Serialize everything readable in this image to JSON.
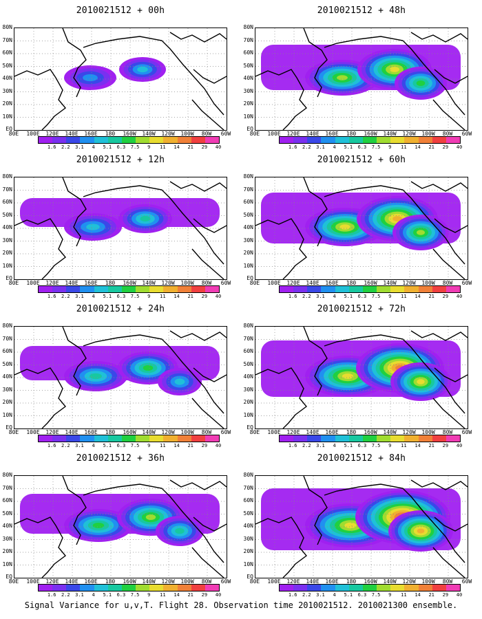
{
  "footer": "Signal Variance for u,v,T. Flight 28. Observation time 2010021512. 2010021300 ensemble.",
  "colorbar": {
    "labels": [
      "1.6",
      "2.2",
      "3.1",
      "4",
      "5.1",
      "6.3",
      "7.5",
      "9",
      "11",
      "14",
      "21",
      "29",
      "40"
    ],
    "colors": [
      "#a020f0",
      "#7a30f0",
      "#3a48e8",
      "#2090f0",
      "#20c0d8",
      "#18c8a0",
      "#20d040",
      "#a0dc30",
      "#e8dc30",
      "#f0b030",
      "#f08038",
      "#f04040",
      "#f03cb4"
    ]
  },
  "axes": {
    "y_labels": [
      "80N",
      "70N",
      "60N",
      "50N",
      "40N",
      "30N",
      "20N",
      "10N",
      "EQ"
    ],
    "x_labels": [
      "80E",
      "100E",
      "120E",
      "140E",
      "160E",
      "180",
      "160W",
      "140W",
      "120W",
      "100W",
      "80W",
      "60W"
    ]
  },
  "chart_data": [
    {
      "type": "heatmap",
      "title": "2010021512 + 00h",
      "forecast_hour": 0,
      "level": 0
    },
    {
      "type": "heatmap",
      "title": "2010021512 + 48h",
      "forecast_hour": 48,
      "level": 4
    },
    {
      "type": "heatmap",
      "title": "2010021512 + 12h",
      "forecast_hour": 12,
      "level": 1
    },
    {
      "type": "heatmap",
      "title": "2010021512 + 60h",
      "forecast_hour": 60,
      "level": 5
    },
    {
      "type": "heatmap",
      "title": "2010021512 + 24h",
      "forecast_hour": 24,
      "level": 2
    },
    {
      "type": "heatmap",
      "title": "2010021512 + 72h",
      "forecast_hour": 72,
      "level": 6
    },
    {
      "type": "heatmap",
      "title": "2010021512 + 36h",
      "forecast_hour": 36,
      "level": 3
    },
    {
      "type": "heatmap",
      "title": "2010021512 + 84h",
      "forecast_hour": 84,
      "level": 7
    }
  ]
}
